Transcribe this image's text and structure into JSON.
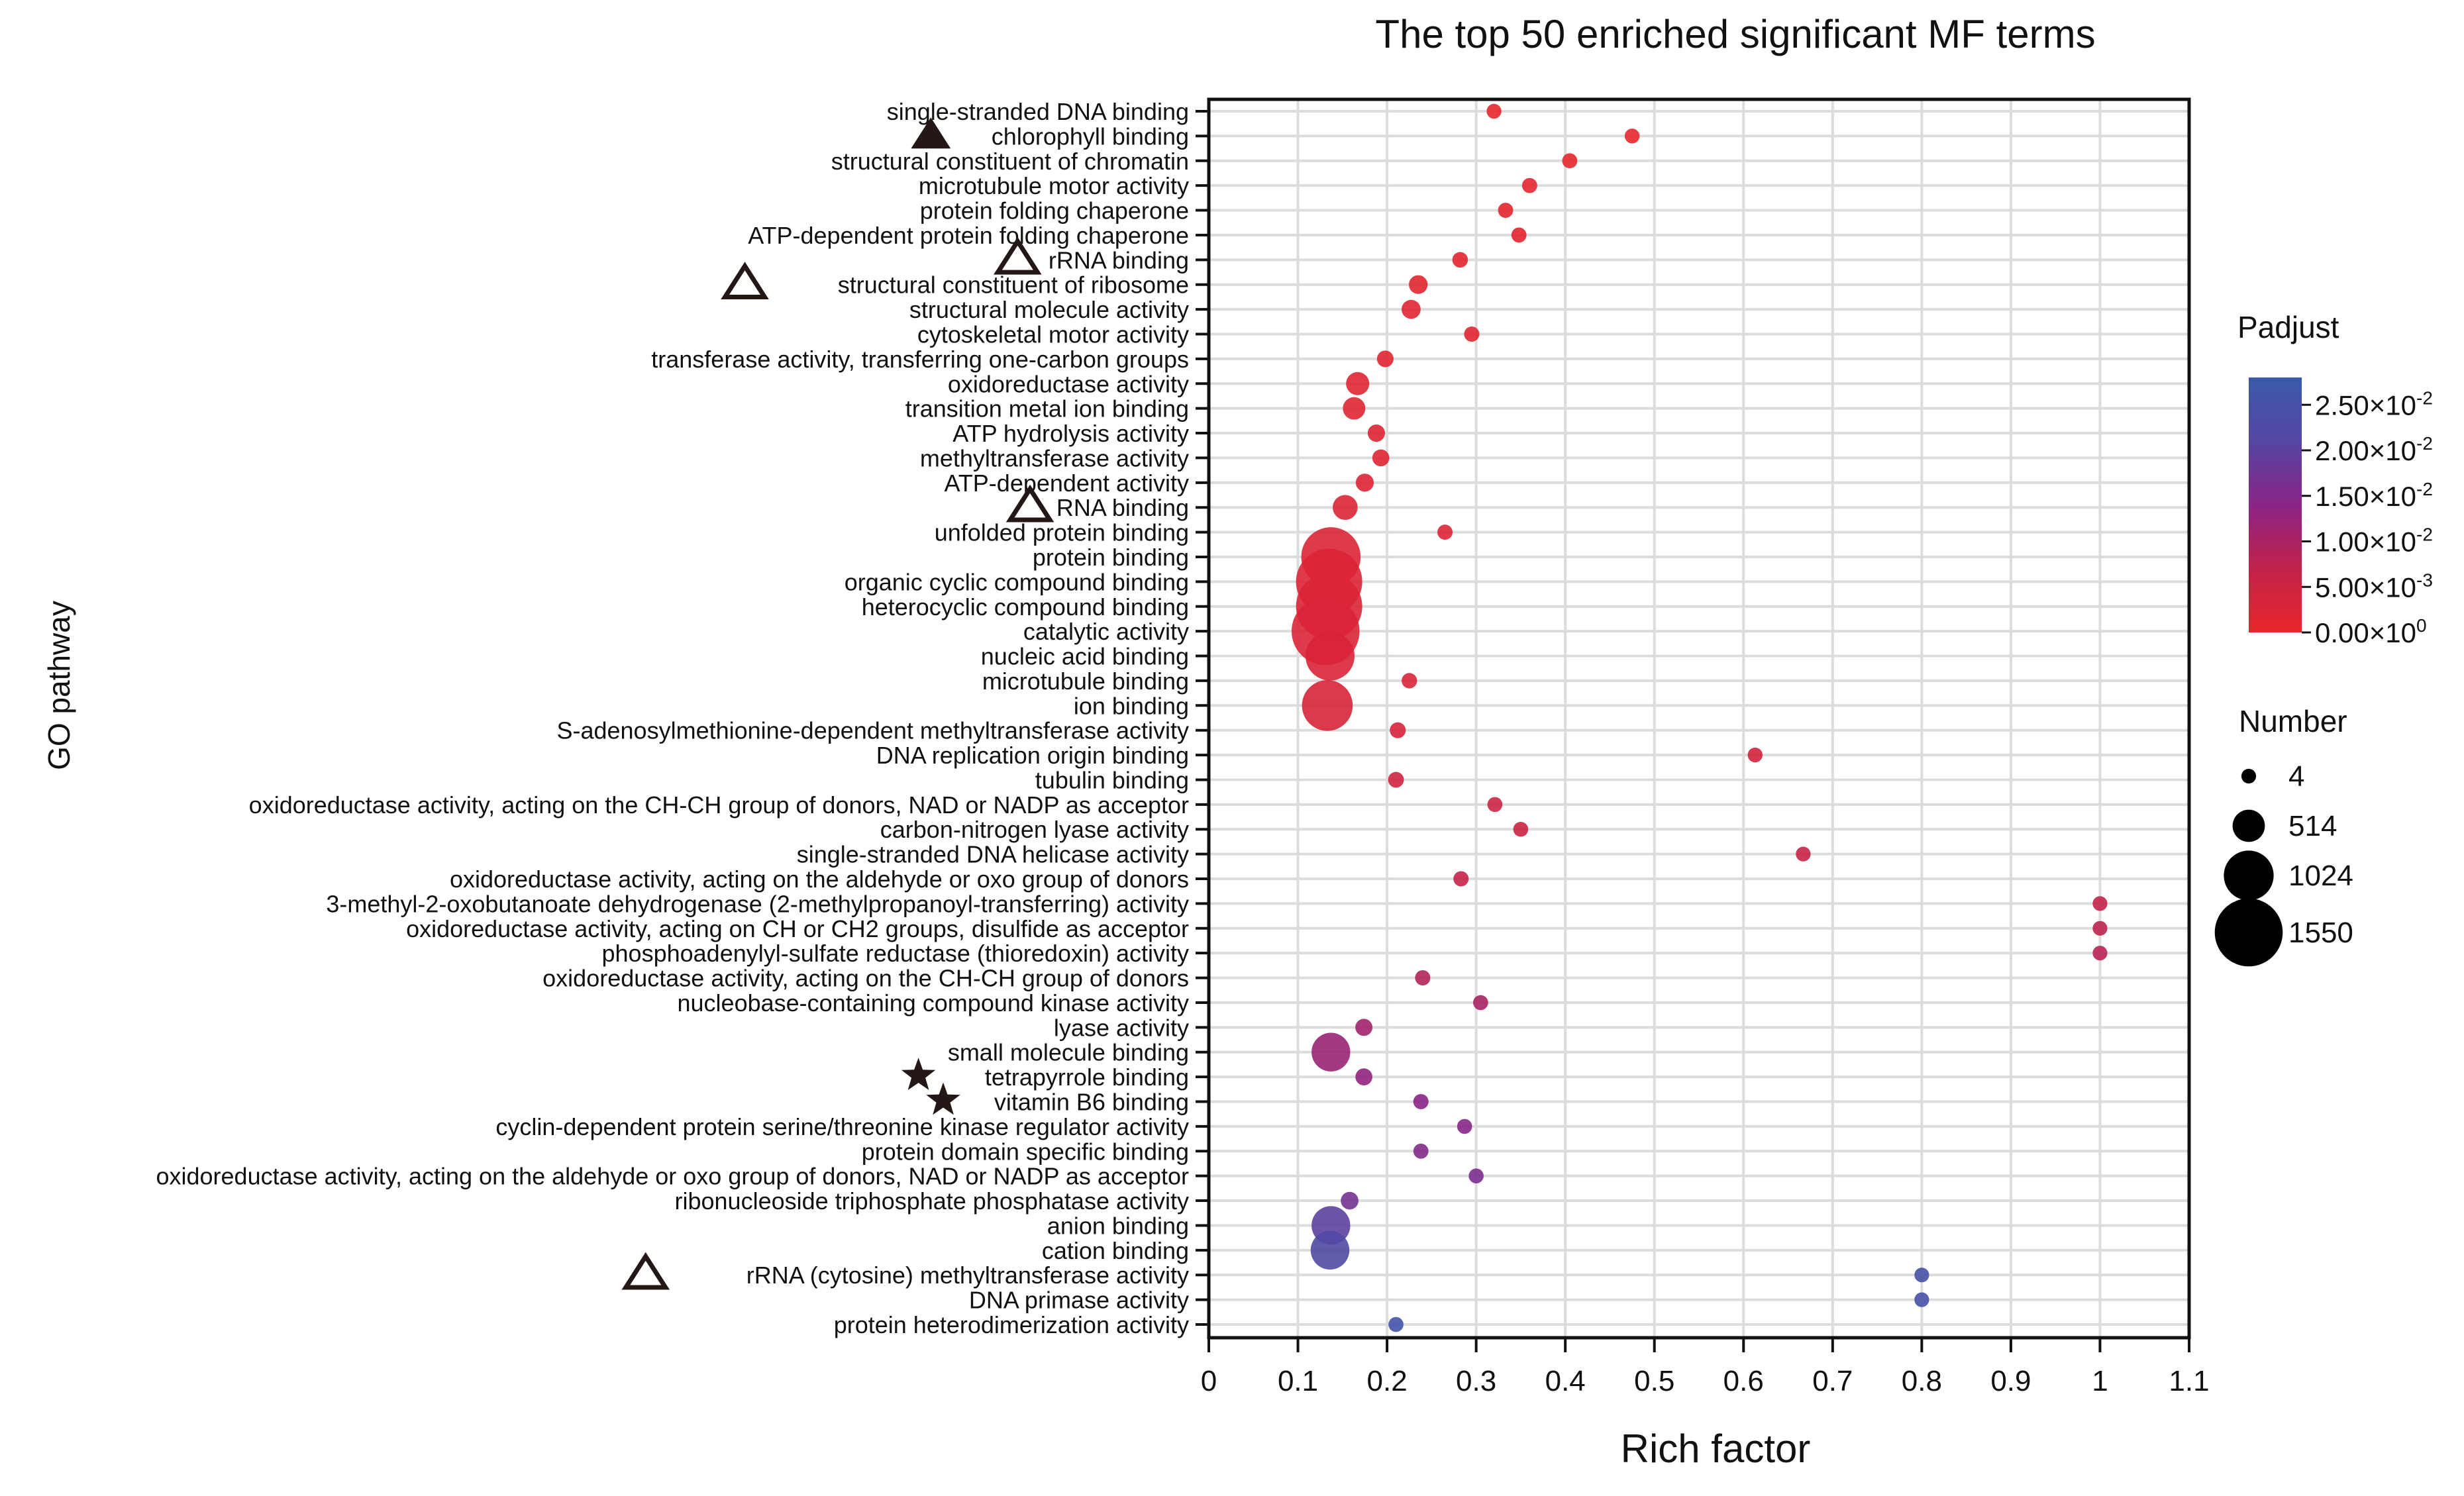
{
  "chart_data": {
    "type": "scatter",
    "title": "The top 50 enriched significant MF terms",
    "xlabel": "Rich factor",
    "ylabel": "GO pathway",
    "xlim": [
      0,
      1.1
    ],
    "xticks": [
      "0",
      "0.1",
      "0.2",
      "0.3",
      "0.4",
      "0.5",
      "0.6",
      "0.7",
      "0.8",
      "0.9",
      "1",
      "1.1"
    ],
    "xtick_values": [
      0,
      0.1,
      0.2,
      0.3,
      0.4,
      0.5,
      0.6,
      0.7,
      0.8,
      0.9,
      1.0,
      1.1
    ],
    "grid": true,
    "color_legend": {
      "title": "Padjust",
      "min": 0,
      "max": 0.028,
      "colors": [
        "#e8262b",
        "#c1224a",
        "#8a2486",
        "#5446a2",
        "#3b5aa9"
      ],
      "ticks": [
        {
          "value": 0.025,
          "mantissa": "2.50×10",
          "exp": "-2"
        },
        {
          "value": 0.02,
          "mantissa": "2.00×10",
          "exp": "-2"
        },
        {
          "value": 0.015,
          "mantissa": "1.50×10",
          "exp": "-2"
        },
        {
          "value": 0.01,
          "mantissa": "1.00×10",
          "exp": "-2"
        },
        {
          "value": 0.005,
          "mantissa": "5.00×10",
          "exp": "-3"
        },
        {
          "value": 0,
          "mantissa": "0.00×10",
          "exp": "0"
        }
      ]
    },
    "size_legend": {
      "title": "Number",
      "items": [
        {
          "label": "4",
          "value": 4
        },
        {
          "label": "514",
          "value": 514
        },
        {
          "label": "1024",
          "value": 1024
        },
        {
          "label": "1550",
          "value": 1550
        }
      ]
    },
    "points": [
      {
        "term": "single-stranded DNA binding",
        "rich": 0.32,
        "number": 8,
        "padj": 0.0005,
        "marker": ""
      },
      {
        "term": "chlorophyll binding",
        "rich": 0.475,
        "number": 9,
        "padj": 0.0006,
        "marker": "filled-triangle"
      },
      {
        "term": "structural constituent of chromatin",
        "rich": 0.405,
        "number": 15,
        "padj": 0.0007,
        "marker": ""
      },
      {
        "term": "microtubule motor activity",
        "rich": 0.36,
        "number": 18,
        "padj": 0.0008,
        "marker": ""
      },
      {
        "term": "protein folding chaperone",
        "rich": 0.333,
        "number": 16,
        "padj": 0.0009,
        "marker": ""
      },
      {
        "term": "ATP-dependent protein folding chaperone",
        "rich": 0.348,
        "number": 16,
        "padj": 0.001,
        "marker": ""
      },
      {
        "term": "rRNA binding",
        "rich": 0.282,
        "number": 30,
        "padj": 0.0011,
        "marker": "open-triangle"
      },
      {
        "term": "structural constituent of ribosome",
        "rich": 0.235,
        "number": 120,
        "padj": 0.0012,
        "marker": "open-triangle"
      },
      {
        "term": "structural molecule activity",
        "rich": 0.227,
        "number": 130,
        "padj": 0.0013,
        "marker": ""
      },
      {
        "term": "cytoskeletal motor activity",
        "rich": 0.295,
        "number": 20,
        "padj": 0.0014,
        "marker": ""
      },
      {
        "term": "transferase activity, transferring one-carbon groups",
        "rich": 0.198,
        "number": 60,
        "padj": 0.0015,
        "marker": ""
      },
      {
        "term": "oxidoreductase activity",
        "rich": 0.167,
        "number": 250,
        "padj": 0.0016,
        "marker": ""
      },
      {
        "term": "transition metal ion binding",
        "rich": 0.163,
        "number": 230,
        "padj": 0.0017,
        "marker": ""
      },
      {
        "term": "ATP hydrolysis activity",
        "rich": 0.188,
        "number": 80,
        "padj": 0.0018,
        "marker": ""
      },
      {
        "term": "methyltransferase activity",
        "rich": 0.193,
        "number": 70,
        "padj": 0.0019,
        "marker": ""
      },
      {
        "term": "ATP-dependent activity",
        "rich": 0.175,
        "number": 100,
        "padj": 0.002,
        "marker": ""
      },
      {
        "term": "RNA binding",
        "rich": 0.153,
        "number": 300,
        "padj": 0.0021,
        "marker": "open-triangle"
      },
      {
        "term": "unfolded protein binding",
        "rich": 0.265,
        "number": 18,
        "padj": 0.0022,
        "marker": ""
      },
      {
        "term": "protein binding",
        "rich": 0.137,
        "number": 1300,
        "padj": 0.0023,
        "marker": ""
      },
      {
        "term": "organic cyclic compound binding",
        "rich": 0.135,
        "number": 1500,
        "padj": 0.0024,
        "marker": ""
      },
      {
        "term": "heterocyclic compound binding",
        "rich": 0.135,
        "number": 1500,
        "padj": 0.0025,
        "marker": ""
      },
      {
        "term": "catalytic activity",
        "rich": 0.131,
        "number": 1550,
        "padj": 0.0026,
        "marker": ""
      },
      {
        "term": "nucleic acid binding",
        "rich": 0.136,
        "number": 1000,
        "padj": 0.0027,
        "marker": ""
      },
      {
        "term": "microtubule binding",
        "rich": 0.225,
        "number": 25,
        "padj": 0.0028,
        "marker": ""
      },
      {
        "term": "ion binding",
        "rich": 0.133,
        "number": 1050,
        "padj": 0.003,
        "marker": ""
      },
      {
        "term": "S-adenosylmethionine-dependent methyltransferase activity",
        "rich": 0.212,
        "number": 40,
        "padj": 0.0035,
        "marker": ""
      },
      {
        "term": "DNA replication origin binding",
        "rich": 0.613,
        "number": 8,
        "padj": 0.004,
        "marker": ""
      },
      {
        "term": "tubulin binding",
        "rich": 0.21,
        "number": 35,
        "padj": 0.0045,
        "marker": ""
      },
      {
        "term": "oxidoreductase activity, acting on the CH-CH group of donors, NAD or NADP as acceptor",
        "rich": 0.321,
        "number": 12,
        "padj": 0.005,
        "marker": ""
      },
      {
        "term": "carbon-nitrogen lyase activity",
        "rich": 0.35,
        "number": 10,
        "padj": 0.0055,
        "marker": ""
      },
      {
        "term": "single-stranded DNA helicase activity",
        "rich": 0.667,
        "number": 6,
        "padj": 0.006,
        "marker": ""
      },
      {
        "term": "oxidoreductase activity, acting on the aldehyde or oxo group of donors",
        "rich": 0.283,
        "number": 20,
        "padj": 0.0065,
        "marker": ""
      },
      {
        "term": "3-methyl-2-oxobutanoate dehydrogenase (2-methylpropanoyl-transferring) activity",
        "rich": 1.0,
        "number": 4,
        "padj": 0.007,
        "marker": ""
      },
      {
        "term": "oxidoreductase activity, acting on CH or CH2 groups, disulfide as acceptor",
        "rich": 1.0,
        "number": 4,
        "padj": 0.0075,
        "marker": ""
      },
      {
        "term": "phosphoadenylyl-sulfate reductase (thioredoxin) activity",
        "rich": 1.0,
        "number": 4,
        "padj": 0.008,
        "marker": ""
      },
      {
        "term": "oxidoreductase activity, acting on the CH-CH group of donors",
        "rich": 0.24,
        "number": 20,
        "padj": 0.009,
        "marker": ""
      },
      {
        "term": "nucleobase-containing compound kinase activity",
        "rich": 0.305,
        "number": 14,
        "padj": 0.01,
        "marker": ""
      },
      {
        "term": "lyase activity",
        "rich": 0.174,
        "number": 75,
        "padj": 0.011,
        "marker": ""
      },
      {
        "term": "small molecule binding",
        "rich": 0.137,
        "number": 700,
        "padj": 0.012,
        "marker": ""
      },
      {
        "term": "tetrapyrrole binding",
        "rich": 0.174,
        "number": 70,
        "padj": 0.013,
        "marker": "star"
      },
      {
        "term": "vitamin B6 binding",
        "rich": 0.238,
        "number": 20,
        "padj": 0.014,
        "marker": "star"
      },
      {
        "term": "cyclin-dependent protein serine/threonine kinase regulator activity",
        "rich": 0.287,
        "number": 12,
        "padj": 0.0145,
        "marker": ""
      },
      {
        "term": "protein domain specific binding",
        "rich": 0.238,
        "number": 16,
        "padj": 0.015,
        "marker": ""
      },
      {
        "term": "oxidoreductase activity, acting on the aldehyde or oxo group of donors, NAD or NADP as acceptor",
        "rich": 0.3,
        "number": 11,
        "padj": 0.016,
        "marker": ""
      },
      {
        "term": "ribonucleoside triphosphate phosphatase activity",
        "rich": 0.158,
        "number": 90,
        "padj": 0.017,
        "marker": ""
      },
      {
        "term": "anion binding",
        "rich": 0.137,
        "number": 700,
        "padj": 0.02,
        "marker": ""
      },
      {
        "term": "cation binding",
        "rich": 0.136,
        "number": 700,
        "padj": 0.022,
        "marker": ""
      },
      {
        "term": "rRNA (cytosine) methyltransferase activity",
        "rich": 0.8,
        "number": 4,
        "padj": 0.025,
        "marker": "open-triangle"
      },
      {
        "term": "DNA primase activity",
        "rich": 0.8,
        "number": 4,
        "padj": 0.025,
        "marker": ""
      },
      {
        "term": "protein heterodimerization activity",
        "rich": 0.21,
        "number": 14,
        "padj": 0.026,
        "marker": ""
      }
    ]
  }
}
